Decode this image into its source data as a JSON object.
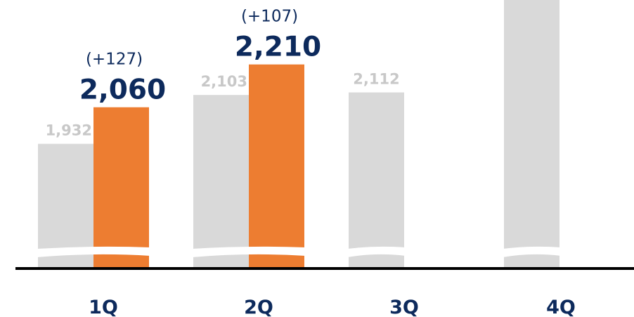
{
  "chart_data": {
    "type": "bar",
    "categories": [
      "1Q",
      "2Q",
      "3Q",
      "4Q"
    ],
    "series": [
      {
        "values": [
          1932,
          2103,
          2112,
          null
        ],
        "value_labels": [
          "1,932",
          "2,103",
          "2,112",
          ""
        ],
        "color": "#d9d9d9"
      },
      {
        "values": [
          2060,
          2210,
          null,
          null
        ],
        "value_labels": [
          "2,060",
          "2,210",
          "",
          ""
        ],
        "change_labels": [
          "(+127)",
          "(+107)",
          "",
          ""
        ],
        "color": "#ed7d31"
      }
    ],
    "axis_broken": true,
    "grid": false,
    "colors": {
      "axis": "#000000",
      "label": "#0d2a5c",
      "prior_label": "#c8c8c8"
    }
  }
}
